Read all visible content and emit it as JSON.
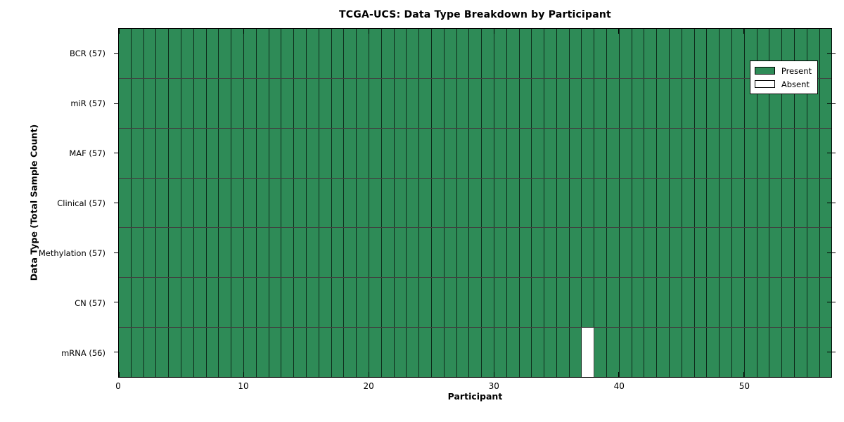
{
  "chart_data": {
    "type": "heatmap",
    "title": "TCGA-UCS: Data Type Breakdown by Participant",
    "xlabel": "Participant",
    "ylabel": "Data Type (Total Sample Count)",
    "x_range": [
      0,
      57
    ],
    "n_participants": 57,
    "x_ticks": [
      0,
      10,
      20,
      30,
      40,
      50
    ],
    "rows": [
      {
        "label": "BCR (57)",
        "count": 57,
        "absent_participants": []
      },
      {
        "label": "miR (57)",
        "count": 57,
        "absent_participants": []
      },
      {
        "label": "MAF (57)",
        "count": 57,
        "absent_participants": []
      },
      {
        "label": "Clinical (57)",
        "count": 57,
        "absent_participants": []
      },
      {
        "label": "Methylation (57)",
        "count": 57,
        "absent_participants": []
      },
      {
        "label": "CN (57)",
        "count": 57,
        "absent_participants": []
      },
      {
        "label": "mRNA (56)",
        "count": 56,
        "absent_participants": [
          37
        ]
      }
    ],
    "legend": [
      {
        "label": "Present",
        "color": "#2E8B57"
      },
      {
        "label": "Absent",
        "color": "#FFFFFF"
      }
    ],
    "colors": {
      "present": "#2E8B57",
      "absent": "#FFFFFF",
      "cell_edge": "#000000",
      "frame": "#000000",
      "background": "#FFFFFF"
    },
    "layout": {
      "grid": "off",
      "legend_position": "upper right"
    }
  }
}
